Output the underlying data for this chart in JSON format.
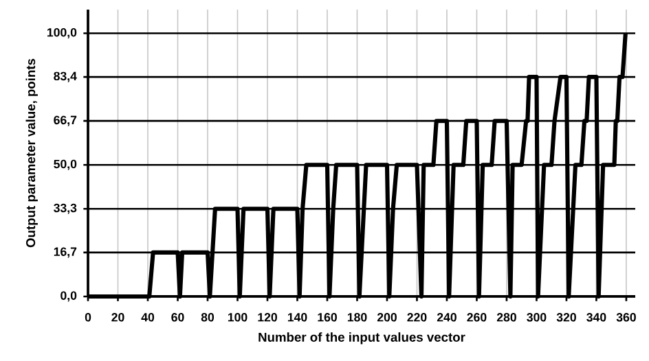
{
  "chart_data": {
    "type": "line",
    "xlabel": "Number of the input values vector",
    "ylabel": "Output parameter value, points",
    "xlim": [
      0,
      366
    ],
    "ylim": [
      0,
      109
    ],
    "xticks": [
      0,
      20,
      40,
      60,
      80,
      100,
      120,
      140,
      160,
      180,
      200,
      220,
      240,
      260,
      280,
      300,
      320,
      340,
      360
    ],
    "yticks": [
      {
        "value": 0,
        "label": "0,0"
      },
      {
        "value": 16.7,
        "label": "16,7"
      },
      {
        "value": 33.3,
        "label": "33,3"
      },
      {
        "value": 50,
        "label": "50,0"
      },
      {
        "value": 66.7,
        "label": "66,7"
      },
      {
        "value": 83.4,
        "label": "83,4"
      },
      {
        "value": 100,
        "label": "100,0"
      }
    ],
    "grid": true,
    "marker": "none",
    "line_style": "solid",
    "series": [
      {
        "color": "#000000",
        "x": [
          0,
          41,
          43.5,
          60,
          61.5,
          63,
          80,
          81.5,
          85,
          100,
          101.5,
          104,
          120,
          121.5,
          124,
          140,
          141.5,
          143.5,
          146,
          160,
          161.5,
          164,
          166,
          180,
          181.5,
          186,
          200,
          201.5,
          204,
          206.5,
          220,
          223,
          224.5,
          231,
          233,
          240,
          241.5,
          244.5,
          251,
          253,
          260,
          261.5,
          264,
          270,
          272,
          280,
          282.5,
          284,
          290,
          293,
          294,
          295,
          300,
          301,
          305,
          310,
          312,
          316,
          320,
          321.5,
          326,
          330,
          332,
          333.5,
          335,
          340,
          341.5,
          344.5,
          352,
          353,
          354,
          355.5,
          357.5,
          359.5
        ],
        "values": [
          0,
          0,
          16.7,
          16.7,
          0,
          16.7,
          16.7,
          0,
          33.3,
          33.3,
          0,
          33.3,
          33.3,
          0,
          33.3,
          33.3,
          0,
          33.3,
          50,
          50,
          0,
          33.3,
          50,
          50,
          0,
          50,
          50,
          0,
          33.3,
          50,
          50,
          0,
          50,
          50,
          66.7,
          66.7,
          0,
          50,
          50,
          66.7,
          66.7,
          0,
          50,
          50,
          66.7,
          66.7,
          0,
          50,
          50,
          66.7,
          66.7,
          83.4,
          83.4,
          0,
          50,
          50,
          66.7,
          83.4,
          83.4,
          0,
          50,
          50,
          66.7,
          66.7,
          83.4,
          83.4,
          0,
          50,
          50,
          66.7,
          66.7,
          83.4,
          83.4,
          100
        ]
      }
    ]
  }
}
